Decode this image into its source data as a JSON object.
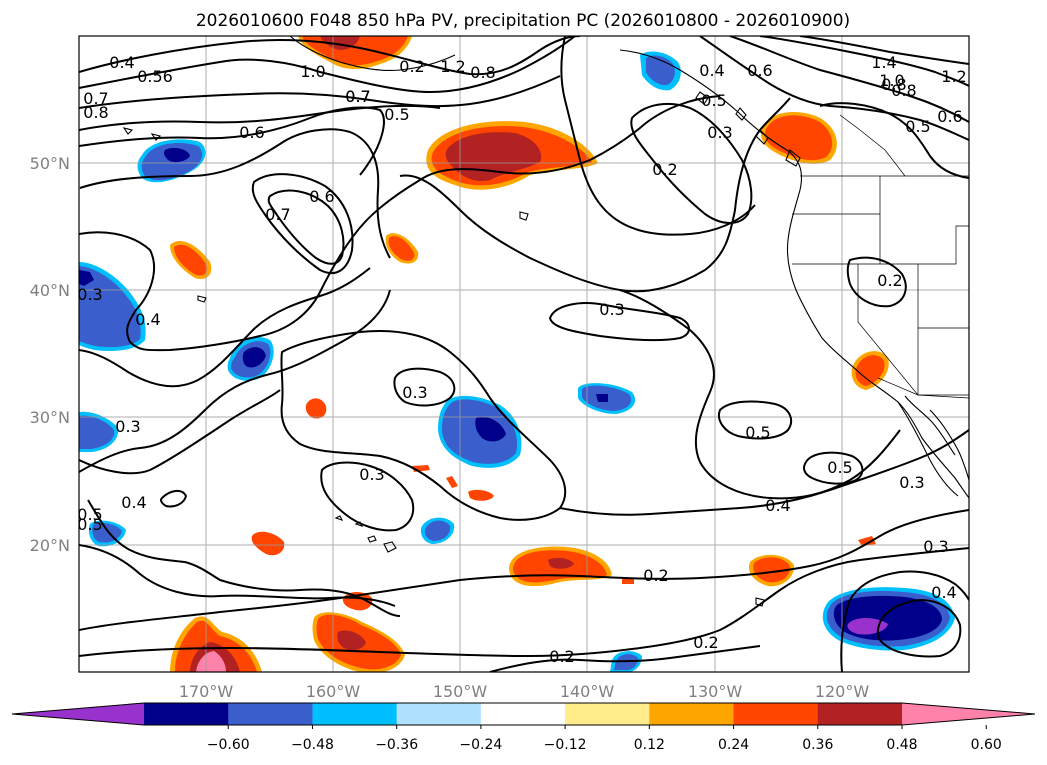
{
  "title": "2026010600 F048 850 hPa PV, precipitation PC (2026010800 - 2026010900)",
  "chart_data": {
    "type": "contour-map",
    "title": "2026010600 F048 850 hPa PV, precipitation PC (2026010800 - 2026010900)",
    "latitude_labels": [
      "50°N",
      "40°N",
      "30°N",
      "20°N"
    ],
    "longitude_labels": [
      "170°W",
      "160°W",
      "150°W",
      "140°W",
      "130°W",
      "120°W"
    ],
    "colorbar": {
      "ticks": [
        "−0.60",
        "−0.48",
        "−0.36",
        "−0.24",
        "−0.12",
        "0.12",
        "0.24",
        "0.36",
        "0.48",
        "0.60"
      ],
      "colors": [
        "#9932cc",
        "#00008b",
        "#3a5fcd",
        "#00bfff",
        "#b0e2ff",
        "#ffffff",
        "#ffec8b",
        "#ffa500",
        "#ff4500",
        "#b22222",
        "#ff82ab"
      ]
    },
    "pv_contour_labels": [
      "0.4",
      "0.56",
      "1.0",
      "1.2",
      "0.8",
      "0.7",
      "0.8",
      "0.5",
      "0.6",
      "0.7",
      "0.6",
      "0.4",
      "0.3",
      "0.2",
      "0.3",
      "0.3",
      "0.3",
      "0.5",
      "0.5",
      "0.4",
      "0.3",
      "0.2",
      "0.2",
      "0.2",
      "0.3",
      "0.4",
      "0.5",
      "0.4",
      "0.2",
      "0.7",
      "0.6",
      "0.5",
      "1.4",
      "1.0",
      "1.2",
      "0.8",
      "0.4",
      "0.5",
      "0.3",
      "0.3",
      "0.2",
      "0.7",
      "0.5",
      "0.6",
      "0.8"
    ]
  }
}
